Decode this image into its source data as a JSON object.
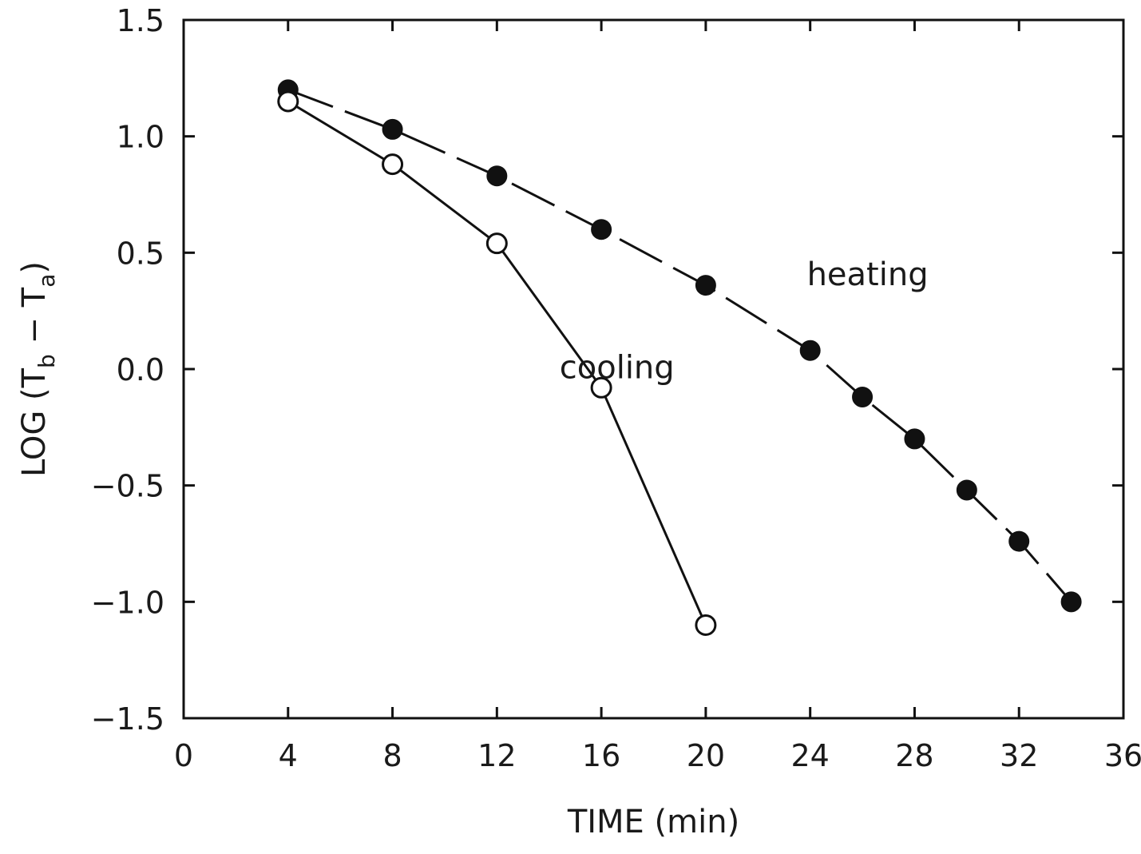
{
  "chart_data": {
    "type": "line",
    "xlabel": "TIME (min)",
    "ylabel_main": "LOG (T",
    "ylabel_sub_b": "b",
    "ylabel_mid": " − T",
    "ylabel_sub_a": "a",
    "ylabel_close": ")",
    "xlim": [
      0,
      36
    ],
    "ylim": [
      -1.5,
      1.5
    ],
    "xticks": [
      0,
      4,
      8,
      12,
      16,
      20,
      24,
      28,
      32,
      36
    ],
    "yticks": [
      -1.5,
      -1.0,
      -0.5,
      0.0,
      0.5,
      1.0,
      1.5
    ],
    "xtick_labels": [
      "0",
      "4",
      "8",
      "12",
      "16",
      "20",
      "24",
      "28",
      "32",
      "36"
    ],
    "ytick_labels": [
      "−1.5",
      "−1.0",
      "−0.5",
      "0.0",
      "0.5",
      "1.0",
      "1.5"
    ],
    "grid": false,
    "series": [
      {
        "name": "heating",
        "marker": "filled-circle",
        "line": "dashed",
        "x": [
          4,
          8,
          12,
          16,
          20,
          24,
          26,
          28,
          30,
          32,
          34
        ],
        "y": [
          1.2,
          1.03,
          0.83,
          0.6,
          0.36,
          0.08,
          -0.12,
          -0.3,
          -0.52,
          -0.74,
          -1.0
        ]
      },
      {
        "name": "cooling",
        "marker": "open-circle",
        "line": "solid",
        "x": [
          4,
          8,
          12,
          16,
          20
        ],
        "y": [
          1.15,
          0.88,
          0.54,
          -0.08,
          -1.1
        ]
      }
    ],
    "annotations": [
      {
        "text": "heating",
        "x": 26.2,
        "y": 0.36
      },
      {
        "text": "cooling",
        "x": 16.6,
        "y": -0.04
      }
    ]
  }
}
